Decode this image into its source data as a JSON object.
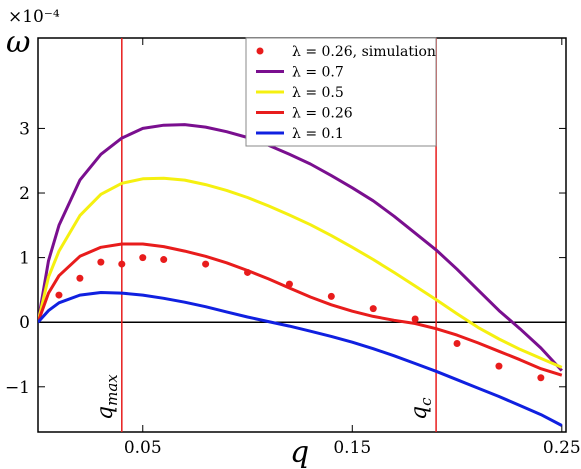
{
  "chart_data": {
    "type": "line",
    "xlabel": "q",
    "ylabel": "ω",
    "y_multiplier_label": "×10⁻⁴",
    "xlim": [
      0,
      0.252
    ],
    "ylim": [
      -1.7,
      4.4
    ],
    "x_ticks": [
      {
        "value": 0.05,
        "label": "0.05"
      },
      {
        "value": 0.15,
        "label": "0.15"
      },
      {
        "value": 0.25,
        "label": "0.25"
      }
    ],
    "y_ticks": [
      {
        "value": -1,
        "label": "−1"
      },
      {
        "value": 0,
        "label": "0"
      },
      {
        "value": 1,
        "label": "1"
      },
      {
        "value": 2,
        "label": "2"
      },
      {
        "value": 3,
        "label": "3"
      }
    ],
    "grid": false,
    "legend_position": "top-right",
    "zero_line": true,
    "series": [
      {
        "name": "λ = 0.7",
        "color": "#7a0f8f",
        "style": "line",
        "x": [
          0,
          0.005,
          0.01,
          0.02,
          0.03,
          0.04,
          0.05,
          0.06,
          0.07,
          0.08,
          0.09,
          0.1,
          0.11,
          0.12,
          0.13,
          0.14,
          0.15,
          0.16,
          0.17,
          0.18,
          0.19,
          0.2,
          0.21,
          0.22,
          0.23,
          0.24,
          0.25
        ],
        "y": [
          0,
          0.95,
          1.5,
          2.2,
          2.6,
          2.85,
          3.0,
          3.05,
          3.06,
          3.02,
          2.95,
          2.86,
          2.74,
          2.6,
          2.45,
          2.27,
          2.08,
          1.88,
          1.64,
          1.38,
          1.12,
          0.82,
          0.5,
          0.18,
          -0.1,
          -0.4,
          -0.75
        ]
      },
      {
        "name": "λ = 0.5",
        "color": "#f5f010",
        "style": "line",
        "x": [
          0,
          0.005,
          0.01,
          0.02,
          0.03,
          0.04,
          0.05,
          0.06,
          0.07,
          0.08,
          0.09,
          0.1,
          0.11,
          0.12,
          0.13,
          0.14,
          0.15,
          0.16,
          0.17,
          0.18,
          0.19,
          0.2,
          0.21,
          0.22,
          0.23,
          0.24,
          0.25
        ],
        "y": [
          0,
          0.7,
          1.1,
          1.65,
          1.98,
          2.15,
          2.22,
          2.23,
          2.2,
          2.13,
          2.04,
          1.93,
          1.8,
          1.66,
          1.51,
          1.34,
          1.16,
          0.97,
          0.77,
          0.56,
          0.35,
          0.13,
          -0.08,
          -0.26,
          -0.42,
          -0.56,
          -0.7
        ]
      },
      {
        "name": "λ = 0.26",
        "color": "#e81c1c",
        "style": "line",
        "x": [
          0,
          0.005,
          0.01,
          0.02,
          0.03,
          0.04,
          0.05,
          0.06,
          0.07,
          0.08,
          0.09,
          0.1,
          0.11,
          0.12,
          0.13,
          0.14,
          0.15,
          0.16,
          0.17,
          0.18,
          0.19,
          0.2,
          0.21,
          0.22,
          0.23,
          0.24,
          0.25
        ],
        "y": [
          0,
          0.45,
          0.72,
          1.02,
          1.16,
          1.21,
          1.21,
          1.17,
          1.1,
          1.02,
          0.92,
          0.8,
          0.67,
          0.53,
          0.39,
          0.27,
          0.17,
          0.09,
          0.03,
          -0.02,
          -0.1,
          -0.2,
          -0.32,
          -0.45,
          -0.58,
          -0.72,
          -0.82
        ]
      },
      {
        "name": "λ = 0.1",
        "color": "#1020e0",
        "style": "line",
        "x": [
          0,
          0.005,
          0.01,
          0.02,
          0.03,
          0.04,
          0.05,
          0.06,
          0.07,
          0.08,
          0.09,
          0.1,
          0.11,
          0.12,
          0.13,
          0.14,
          0.15,
          0.16,
          0.17,
          0.18,
          0.19,
          0.2,
          0.21,
          0.22,
          0.23,
          0.24,
          0.25
        ],
        "y": [
          0,
          0.18,
          0.3,
          0.42,
          0.46,
          0.45,
          0.42,
          0.37,
          0.31,
          0.24,
          0.16,
          0.08,
          0.01,
          -0.06,
          -0.14,
          -0.22,
          -0.31,
          -0.41,
          -0.52,
          -0.64,
          -0.76,
          -0.89,
          -1.02,
          -1.15,
          -1.29,
          -1.43,
          -1.6
        ]
      },
      {
        "name": "λ = 0.26, simulation",
        "color": "#e81c1c",
        "style": "scatter",
        "x": [
          0.01,
          0.02,
          0.03,
          0.04,
          0.05,
          0.06,
          0.08,
          0.1,
          0.12,
          0.14,
          0.16,
          0.18,
          0.2,
          0.22,
          0.24
        ],
        "y": [
          0.42,
          0.68,
          0.93,
          0.9,
          1.0,
          0.97,
          0.9,
          0.77,
          0.59,
          0.4,
          0.21,
          0.05,
          -0.33,
          -0.68,
          -0.86
        ]
      }
    ],
    "legend_order": [
      4,
      0,
      1,
      2,
      3
    ],
    "annotations": [
      {
        "label": "q_max",
        "text_main": "q",
        "text_sub": "max",
        "x": 0.04,
        "color": "#e81c1c"
      },
      {
        "label": "q_c",
        "text_main": "q",
        "text_sub": "c",
        "x": 0.19,
        "color": "#e81c1c"
      }
    ]
  }
}
